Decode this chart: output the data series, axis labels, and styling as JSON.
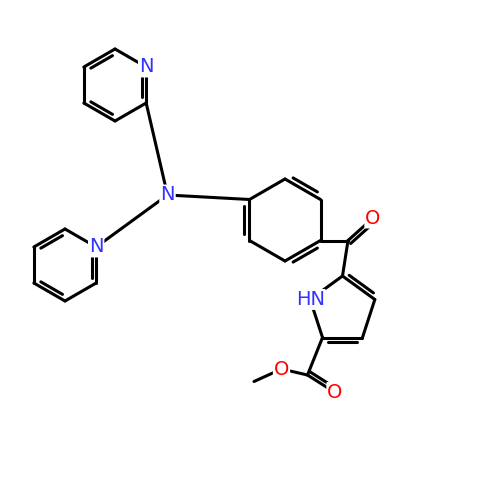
{
  "background_color": "#ffffff",
  "bond_color": "#000000",
  "N_color": "#3333ff",
  "O_color": "#ff0000",
  "bond_width": 2.2,
  "font_size": 14,
  "figsize": [
    5.0,
    5.0
  ],
  "dpi": 100,
  "xlim": [
    0,
    10
  ],
  "ylim": [
    0,
    10
  ]
}
